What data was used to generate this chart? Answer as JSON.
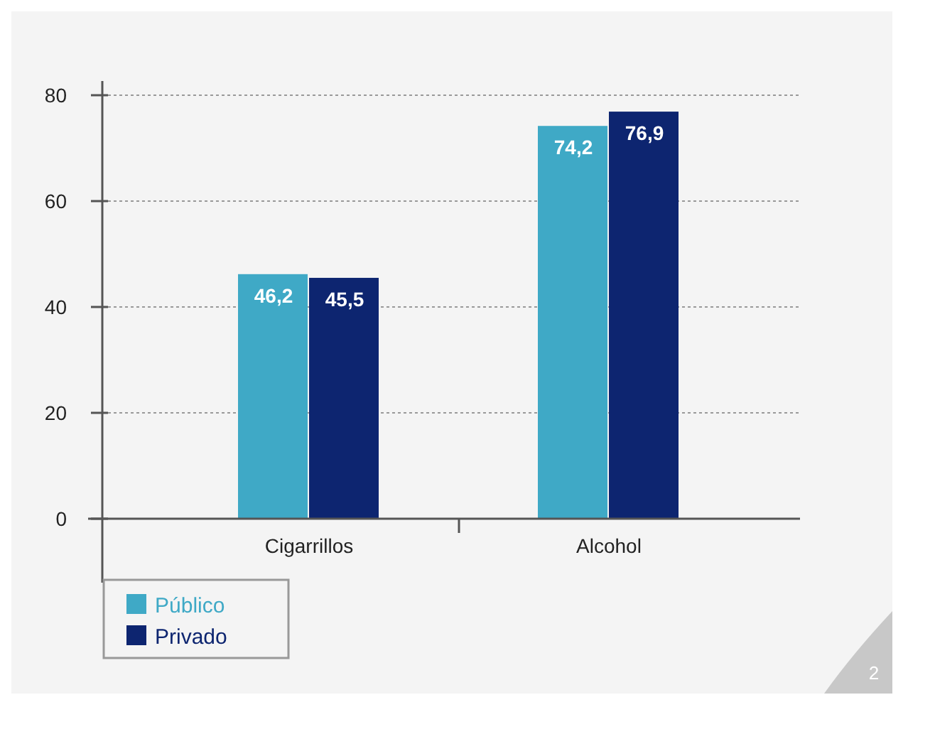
{
  "chart_data": {
    "type": "bar",
    "categories": [
      "Cigarrillos",
      "Alcohol"
    ],
    "series": [
      {
        "name": "Público",
        "color": "#3fa9c6",
        "values": [
          46.2,
          74.2
        ],
        "value_labels": [
          "46,2",
          "74,2"
        ]
      },
      {
        "name": "Privado",
        "color": "#0d2570",
        "values": [
          45.5,
          76.9
        ],
        "value_labels": [
          "45,5",
          "76,9"
        ]
      }
    ],
    "ylim": [
      0,
      80
    ],
    "yticks": [
      0,
      20,
      40,
      60,
      80
    ],
    "grid": "y",
    "legend": "bottom left",
    "annotations": [
      "2"
    ]
  }
}
